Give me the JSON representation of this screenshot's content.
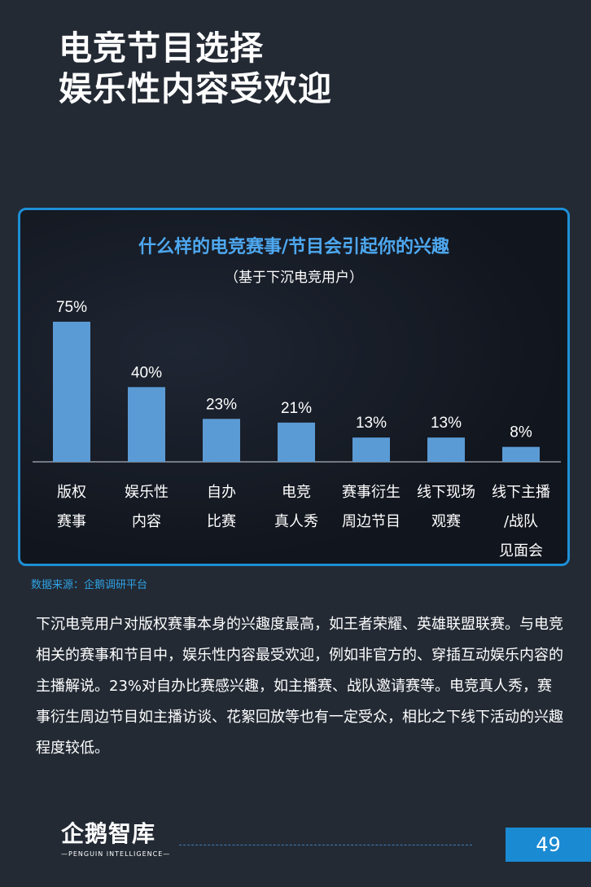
{
  "page": {
    "title_line1": "电竞节目选择",
    "title_line2": "娱乐性内容受欢迎",
    "source": "数据来源：企鹅调研平台",
    "body": "下沉电竞用户对版权赛事本身的兴趣度最高，如王者荣耀、英雄联盟联赛。与电竞相关的赛事和节目中，娱乐性内容最受欢迎，例如非官方的、穿插互动娱乐内容的主播解说。23%对自办比赛感兴趣，如主播赛、战队邀请赛等。电竞真人秀，赛事衍生周边节目如主播访谈、花絮回放等也有一定受众，相比之下线下活动的兴趣程度较低。",
    "logo_text": "企鹅智库",
    "logo_sub": "—PENGUIN INTELLIGENCE—",
    "page_number": "49"
  },
  "colors": {
    "bar": "#5b9bd5",
    "title_accent": "#4ea8f0",
    "panel_border": "#1e8fd6"
  },
  "chart_data": {
    "type": "bar",
    "title": "什么样的电竞赛事/节目会引起你的兴趣",
    "subtitle": "（基于下沉电竞用户）",
    "categories": [
      [
        "版权",
        "赛事"
      ],
      [
        "娱乐性",
        "内容"
      ],
      [
        "自办",
        "比赛"
      ],
      [
        "电竞",
        "真人秀"
      ],
      [
        "赛事衍生",
        "周边节目"
      ],
      [
        "线下现场",
        "观赛"
      ],
      [
        "线下主播",
        "/战队",
        "见面会"
      ]
    ],
    "values": [
      75,
      40,
      23,
      21,
      13,
      13,
      8
    ],
    "value_labels": [
      "75%",
      "40%",
      "23%",
      "21%",
      "13%",
      "13%",
      "8%"
    ],
    "ylim": [
      0,
      75
    ],
    "grid": false,
    "legend": "none"
  }
}
